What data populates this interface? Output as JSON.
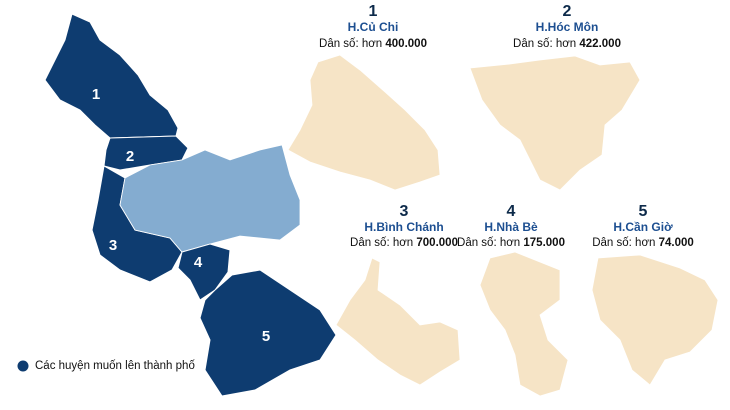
{
  "districts": [
    {
      "number": "1",
      "name": "H.Củ Chi",
      "population_prefix": "Dân số: hơn",
      "population": "400.000"
    },
    {
      "number": "2",
      "name": "H.Hóc Môn",
      "population_prefix": "Dân số: hơn",
      "population": "422.000"
    },
    {
      "number": "3",
      "name": "H.Bình Chánh",
      "population_prefix": "Dân số: hơn",
      "population": "700.000"
    },
    {
      "number": "4",
      "name": "H.Nhà Bè",
      "population_prefix": "Dân số: hơn",
      "population": "175.000"
    },
    {
      "number": "5",
      "name": "H.Cần Giờ",
      "population_prefix": "Dân số: hơn",
      "population": "74.000"
    }
  ],
  "legend": "Các huyện muốn lên thành phố"
}
